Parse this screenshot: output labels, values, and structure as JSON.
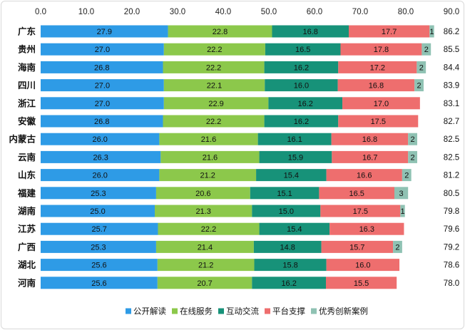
{
  "chart_data": {
    "type": "bar",
    "orientation": "horizontal",
    "stacked": true,
    "title": "",
    "xlabel": "",
    "ylabel": "",
    "xlim": [
      0,
      90
    ],
    "x_ticks": [
      "0.0",
      "10.0",
      "20.0",
      "30.0",
      "40.0",
      "50.0",
      "60.0",
      "70.0",
      "80.0",
      "90.0"
    ],
    "x_axis_position": "top",
    "grid": false,
    "legend_position": "bottom",
    "categories": [
      "广东",
      "贵州",
      "海南",
      "四川",
      "浙江",
      "安徽",
      "内蒙古",
      "云南",
      "山东",
      "福建",
      "湖南",
      "江苏",
      "广西",
      "湖北",
      "河南"
    ],
    "totals": [
      "86.2",
      "85.5",
      "84.4",
      "83.9",
      "83.1",
      "82.7",
      "82.5",
      "82.5",
      "81.2",
      "80.5",
      "79.8",
      "79.6",
      "79.2",
      "78.6",
      "78.0"
    ],
    "series": [
      {
        "name": "公开解读",
        "color": "#2e9be6",
        "values": [
          27.9,
          27.0,
          26.8,
          27.0,
          27.0,
          26.8,
          26.0,
          26.3,
          26.0,
          25.3,
          25.0,
          25.7,
          25.3,
          25.6,
          25.6
        ],
        "labels": [
          "27.9",
          "27.0",
          "26.8",
          "27.0",
          "27.0",
          "26.8",
          "26.0",
          "26.3",
          "26.0",
          "25.3",
          "25.0",
          "25.7",
          "25.3",
          "25.6",
          "25.6"
        ]
      },
      {
        "name": "在线服务",
        "color": "#8cc84b",
        "values": [
          22.8,
          22.2,
          22.2,
          22.1,
          22.9,
          22.2,
          21.6,
          21.6,
          21.2,
          20.6,
          21.3,
          22.2,
          21.4,
          21.2,
          20.7
        ],
        "labels": [
          "22.8",
          "22.2",
          "22.2",
          "22.1",
          "22.9",
          "22.2",
          "21.6",
          "21.6",
          "21.2",
          "20.6",
          "21.3",
          "22.2",
          "21.4",
          "21.2",
          "20.7"
        ]
      },
      {
        "name": "互动交流",
        "color": "#179279",
        "values": [
          16.8,
          16.5,
          16.2,
          16.0,
          16.2,
          16.2,
          16.1,
          15.9,
          15.4,
          15.1,
          15.0,
          15.4,
          14.8,
          15.8,
          16.2
        ],
        "labels": [
          "16.8",
          "16.5",
          "16.2",
          "16.0",
          "16.2",
          "16.2",
          "16.1",
          "15.9",
          "15.4",
          "15.1",
          "15.0",
          "15.4",
          "14.8",
          "15.8",
          "16.2"
        ]
      },
      {
        "name": "平台支撑",
        "color": "#ee6e6e",
        "values": [
          17.7,
          17.8,
          17.2,
          16.8,
          17.0,
          17.5,
          16.8,
          16.7,
          16.6,
          16.5,
          17.5,
          16.3,
          15.7,
          16.0,
          15.5
        ],
        "labels": [
          "17.7",
          "17.8",
          "17.2",
          "16.8",
          "17.0",
          "17.5",
          "16.8",
          "16.7",
          "16.6",
          "16.5",
          "17.5",
          "16.3",
          "15.7",
          "16.0",
          "15.5"
        ]
      },
      {
        "name": "优秀创新案例",
        "color": "#8fc2b3",
        "values": [
          1,
          2,
          2,
          2,
          0,
          0,
          2,
          2,
          2,
          3,
          1,
          0,
          2,
          0,
          0
        ],
        "labels": [
          "1",
          "2",
          "2",
          "2",
          "",
          "",
          "2",
          "2",
          "2",
          "3",
          "1",
          "",
          "2",
          "",
          ""
        ]
      }
    ]
  }
}
